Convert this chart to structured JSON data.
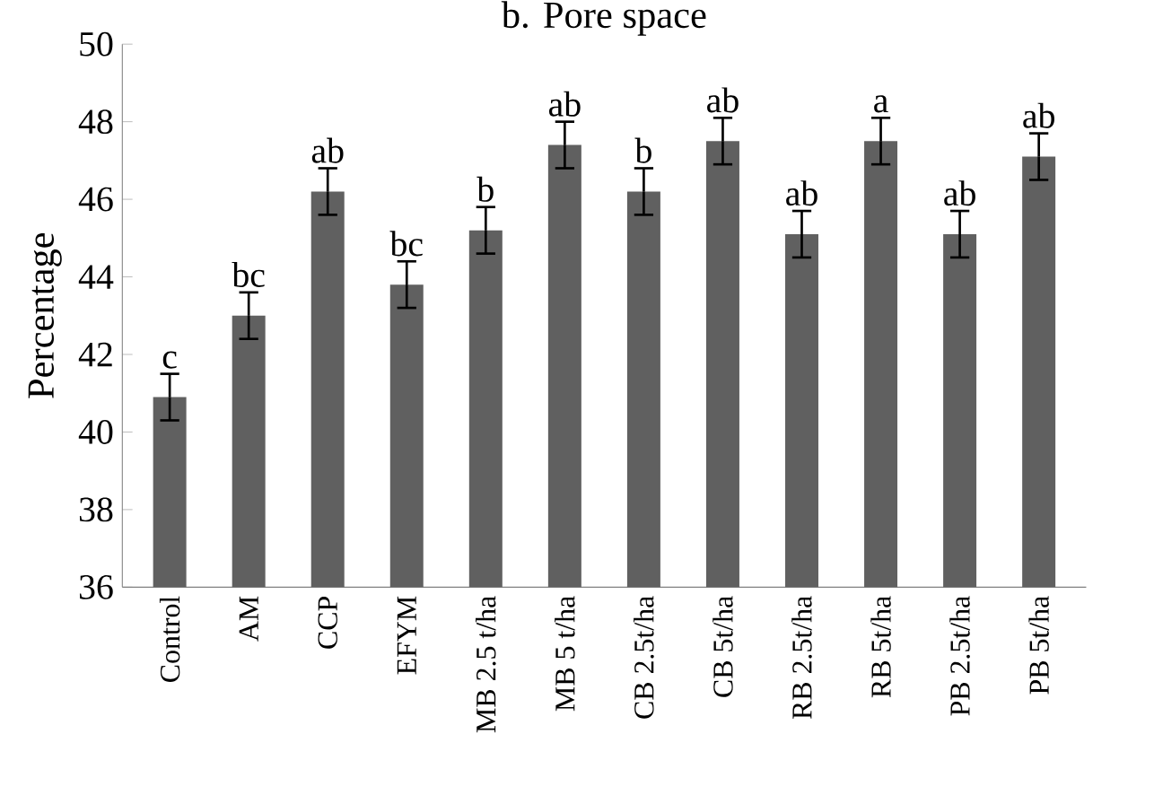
{
  "chart_data": {
    "type": "bar",
    "title": "b. Pore space",
    "ylabel": "Percentage",
    "categories": [
      "Control",
      "AM",
      "CCP",
      "EFYM",
      "MB 2.5 t/ha",
      "MB 5 t/ha",
      "CB 2.5t/ha",
      "CB 5t/ha",
      "RB 2.5t/ha",
      "RB 5t/ha",
      "PB 2.5t/ha",
      "PB 5t/ha"
    ],
    "values": [
      40.9,
      43.0,
      46.2,
      43.8,
      45.2,
      47.4,
      46.2,
      47.5,
      45.1,
      47.5,
      45.1,
      47.1
    ],
    "errors": [
      0.6,
      0.6,
      0.6,
      0.6,
      0.6,
      0.6,
      0.6,
      0.6,
      0.6,
      0.6,
      0.6,
      0.6
    ],
    "color": "#606060",
    "ylim": [
      36,
      50
    ],
    "yticks": [
      36,
      38,
      40,
      42,
      44,
      46,
      48,
      50
    ],
    "grid": false,
    "annotations": [
      {
        "text": "c",
        "x": "Control",
        "y": 41.5
      },
      {
        "text": "bc",
        "x": "AM",
        "y": 43.6
      },
      {
        "text": "ab",
        "x": "CCP",
        "y": 46.8
      },
      {
        "text": "bc",
        "x": "EFYM",
        "y": 44.4
      },
      {
        "text": "b",
        "x": "MB 2.5 t/ha",
        "y": 45.8
      },
      {
        "text": "ab",
        "x": "MB 5 t/ha",
        "y": 48.0
      },
      {
        "text": "b",
        "x": "CB 2.5t/ha",
        "y": 46.8
      },
      {
        "text": "ab",
        "x": "CB 5t/ha",
        "y": 48.1
      },
      {
        "text": "ab",
        "x": "RB 2.5t/ha",
        "y": 45.7
      },
      {
        "text": "a",
        "x": "RB 5t/ha",
        "y": 48.1
      },
      {
        "text": "ab",
        "x": "PB 2.5t/ha",
        "y": 45.7
      },
      {
        "text": "ab",
        "x": "PB 5t/ha",
        "y": 47.7
      }
    ]
  }
}
